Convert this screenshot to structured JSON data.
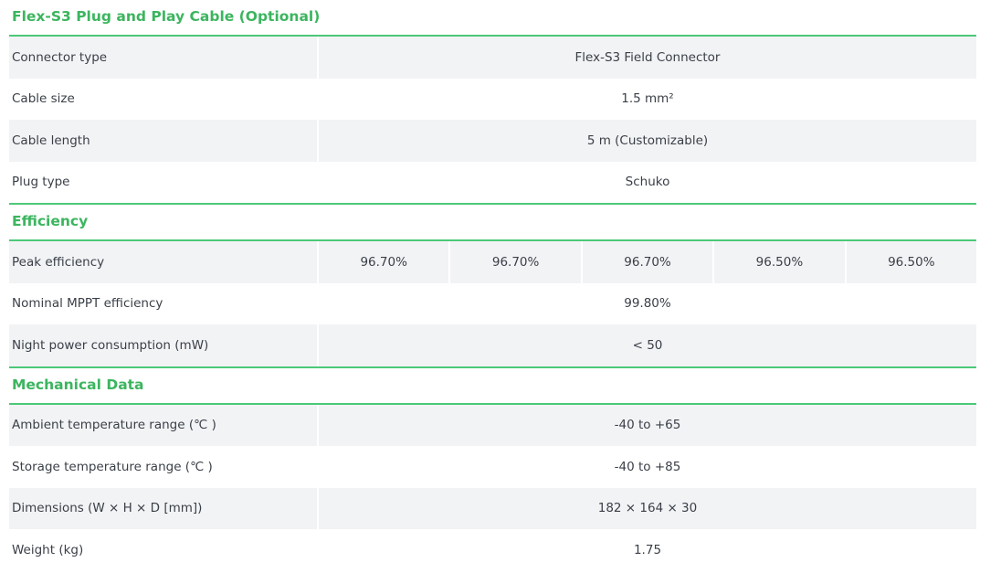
{
  "accent_color": "#3cb55f",
  "sections": [
    {
      "title": "Flex-S3 Plug and Play Cable (Optional)",
      "rows": [
        {
          "label": "Connector type",
          "values": [
            "Flex-S3 Field Connector"
          ]
        },
        {
          "label": "Cable size",
          "values": [
            "1.5 mm²"
          ]
        },
        {
          "label": "Cable length",
          "values": [
            "5 m (Customizable)"
          ]
        },
        {
          "label": "Plug type",
          "values": [
            "Schuko"
          ]
        }
      ]
    },
    {
      "title": "Efficiency",
      "rows": [
        {
          "label": "Peak efficiency",
          "values": [
            "96.70%",
            "96.70%",
            "96.70%",
            "96.50%",
            "96.50%"
          ]
        },
        {
          "label": "Nominal MPPT efficiency",
          "values": [
            "99.80%"
          ]
        },
        {
          "label": "Night power consumption (mW)",
          "values": [
            "< 50"
          ]
        }
      ]
    },
    {
      "title": "Mechanical Data",
      "rows": [
        {
          "label": "Ambient temperature range (℃ )",
          "values": [
            "-40 to +65"
          ]
        },
        {
          "label": "Storage temperature range (℃ )",
          "values": [
            "-40 to +85"
          ]
        },
        {
          "label": "Dimensions (W × H × D [mm])",
          "values": [
            "182 × 164 × 30"
          ]
        },
        {
          "label": "Weight (kg)",
          "values": [
            "1.75"
          ]
        }
      ]
    }
  ]
}
